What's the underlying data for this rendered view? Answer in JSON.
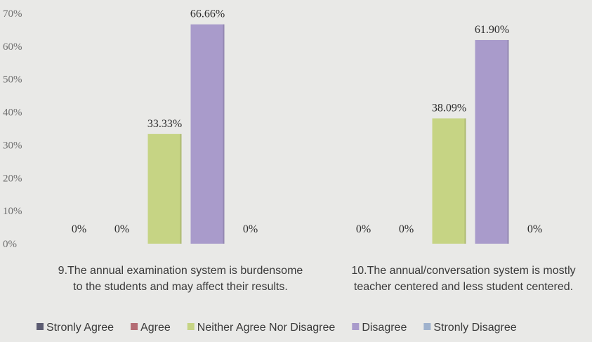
{
  "chart_data": {
    "type": "bar",
    "categories": [
      [
        "9.The annual examination system is burdensome",
        "to the students and may affect their results."
      ],
      [
        "10.The annual/conversation system is mostly",
        "teacher centered and less student centered."
      ]
    ],
    "series": [
      {
        "name": "Stronly Agree",
        "color": "#5c5c72",
        "values": [
          0,
          0
        ],
        "labels": [
          "0%",
          "0%"
        ]
      },
      {
        "name": "Agree",
        "color": "#b46c74",
        "values": [
          0,
          0
        ],
        "labels": [
          "0%",
          "0%"
        ]
      },
      {
        "name": "Neither Agree Nor Disagree",
        "color": "#c6d484",
        "values": [
          33.33,
          38.09
        ],
        "labels": [
          "33.33%",
          "38.09%"
        ]
      },
      {
        "name": "Disagree",
        "color": "#a99bcb",
        "values": [
          66.66,
          61.9
        ],
        "labels": [
          "66.66%",
          "61.90%"
        ]
      },
      {
        "name": "Stronly Disagree",
        "color": "#9fb2cd",
        "values": [
          0,
          0
        ],
        "labels": [
          "0%",
          "0%"
        ]
      }
    ],
    "ylim": [
      0,
      70
    ],
    "yticks": [
      "0%",
      "10%",
      "20%",
      "30%",
      "40%",
      "50%",
      "60%",
      "70%"
    ],
    "legend_position": "bottom",
    "grid": false
  }
}
